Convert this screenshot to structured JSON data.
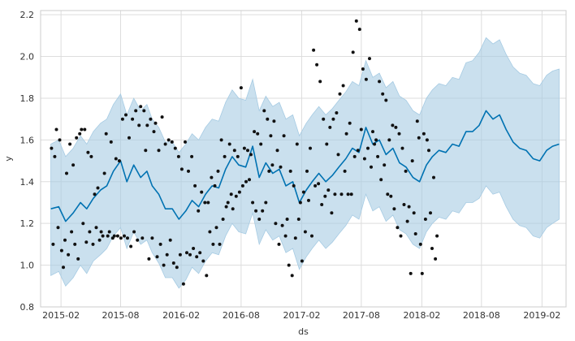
{
  "chart_data": {
    "type": "line",
    "title": "",
    "xlabel": "ds",
    "ylabel": "y",
    "xlim": [
      "2014-12-01",
      "2019-04-15"
    ],
    "ylim": [
      0.8,
      2.22
    ],
    "grid": true,
    "x_ticks": [
      {
        "date": "2015-02-01",
        "label": "2015-02"
      },
      {
        "date": "2015-08-01",
        "label": "2015-08"
      },
      {
        "date": "2016-02-01",
        "label": "2016-02"
      },
      {
        "date": "2016-08-01",
        "label": "2016-08"
      },
      {
        "date": "2017-02-01",
        "label": "2017-02"
      },
      {
        "date": "2017-08-01",
        "label": "2017-08"
      },
      {
        "date": "2018-02-01",
        "label": "2018-02"
      },
      {
        "date": "2018-08-01",
        "label": "2018-08"
      },
      {
        "date": "2019-02-01",
        "label": "2019-02"
      }
    ],
    "y_ticks": [
      0.8,
      1.0,
      1.2,
      1.4,
      1.6,
      1.8,
      2.0,
      2.2
    ],
    "colors": {
      "forecast": "#0072b2",
      "interval": "#a6cbe3",
      "observed": "#111111"
    },
    "forecast": {
      "x": [
        "2015-01-01",
        "2015-01-25",
        "2015-02-15",
        "2015-03-10",
        "2015-04-01",
        "2015-04-20",
        "2015-05-10",
        "2015-06-01",
        "2015-06-20",
        "2015-07-10",
        "2015-08-01",
        "2015-08-20",
        "2015-09-10",
        "2015-10-01",
        "2015-10-20",
        "2015-11-05",
        "2015-11-25",
        "2015-12-15",
        "2016-01-05",
        "2016-01-25",
        "2016-02-15",
        "2016-03-05",
        "2016-03-25",
        "2016-04-15",
        "2016-05-05",
        "2016-05-25",
        "2016-06-15",
        "2016-07-05",
        "2016-07-25",
        "2016-08-15",
        "2016-09-05",
        "2016-09-25",
        "2016-10-15",
        "2016-11-05",
        "2016-11-25",
        "2016-12-15",
        "2017-01-05",
        "2017-01-25",
        "2017-02-15",
        "2017-03-05",
        "2017-03-25",
        "2017-04-15",
        "2017-05-05",
        "2017-05-25",
        "2017-06-15",
        "2017-07-05",
        "2017-07-25",
        "2017-08-15",
        "2017-09-05",
        "2017-09-25",
        "2017-10-15",
        "2017-11-05",
        "2017-11-25",
        "2017-12-15",
        "2018-01-05",
        "2018-01-25",
        "2018-02-15",
        "2018-03-05",
        "2018-03-25",
        "2018-04-15",
        "2018-05-05",
        "2018-05-25",
        "2018-06-15",
        "2018-07-05",
        "2018-07-25",
        "2018-08-15",
        "2018-09-05",
        "2018-09-25",
        "2018-10-15",
        "2018-11-05",
        "2018-11-25",
        "2018-12-15",
        "2019-01-05",
        "2019-01-25",
        "2019-02-15",
        "2019-03-05",
        "2019-03-25"
      ],
      "y": [
        1.27,
        1.28,
        1.21,
        1.25,
        1.3,
        1.27,
        1.32,
        1.36,
        1.38,
        1.45,
        1.5,
        1.4,
        1.48,
        1.42,
        1.45,
        1.38,
        1.34,
        1.27,
        1.27,
        1.22,
        1.26,
        1.31,
        1.28,
        1.34,
        1.38,
        1.37,
        1.46,
        1.52,
        1.48,
        1.47,
        1.57,
        1.42,
        1.49,
        1.44,
        1.46,
        1.38,
        1.4,
        1.3,
        1.36,
        1.4,
        1.44,
        1.4,
        1.43,
        1.47,
        1.51,
        1.56,
        1.54,
        1.66,
        1.58,
        1.6,
        1.53,
        1.56,
        1.49,
        1.47,
        1.42,
        1.4,
        1.48,
        1.52,
        1.55,
        1.54,
        1.58,
        1.57,
        1.64,
        1.64,
        1.67,
        1.74,
        1.7,
        1.72,
        1.65,
        1.59,
        1.56,
        1.55,
        1.51,
        1.5,
        1.55,
        1.57,
        1.58
      ]
    },
    "interval_lower": [
      0.95,
      0.97,
      0.9,
      0.94,
      1.0,
      0.96,
      1.02,
      1.05,
      1.08,
      1.14,
      1.18,
      1.08,
      1.16,
      1.1,
      1.12,
      1.06,
      1.01,
      0.94,
      0.94,
      0.89,
      0.93,
      0.99,
      0.96,
      1.02,
      1.06,
      1.05,
      1.14,
      1.2,
      1.16,
      1.15,
      1.25,
      1.1,
      1.17,
      1.12,
      1.14,
      1.06,
      1.08,
      0.98,
      1.04,
      1.08,
      1.12,
      1.08,
      1.11,
      1.15,
      1.19,
      1.24,
      1.22,
      1.34,
      1.26,
      1.28,
      1.21,
      1.24,
      1.17,
      1.15,
      1.1,
      1.08,
      1.16,
      1.2,
      1.23,
      1.22,
      1.26,
      1.25,
      1.3,
      1.3,
      1.32,
      1.38,
      1.34,
      1.35,
      1.28,
      1.22,
      1.19,
      1.18,
      1.14,
      1.13,
      1.18,
      1.2,
      1.22
    ],
    "interval_upper": [
      1.58,
      1.6,
      1.52,
      1.56,
      1.62,
      1.58,
      1.64,
      1.68,
      1.7,
      1.77,
      1.82,
      1.72,
      1.8,
      1.74,
      1.77,
      1.7,
      1.66,
      1.59,
      1.59,
      1.54,
      1.58,
      1.63,
      1.6,
      1.66,
      1.7,
      1.69,
      1.78,
      1.84,
      1.8,
      1.79,
      1.89,
      1.74,
      1.81,
      1.76,
      1.78,
      1.7,
      1.72,
      1.62,
      1.68,
      1.72,
      1.76,
      1.72,
      1.75,
      1.79,
      1.83,
      1.88,
      1.86,
      1.98,
      1.9,
      1.92,
      1.85,
      1.88,
      1.81,
      1.79,
      1.74,
      1.72,
      1.8,
      1.84,
      1.87,
      1.86,
      1.9,
      1.89,
      1.97,
      1.98,
      2.02,
      2.09,
      2.06,
      2.08,
      2.01,
      1.95,
      1.92,
      1.91,
      1.87,
      1.86,
      1.91,
      1.93,
      1.94
    ],
    "observed": {
      "x": [
        "2015-01-03",
        "2015-01-08",
        "2015-01-13",
        "2015-01-18",
        "2015-01-23",
        "2015-01-28",
        "2015-02-03",
        "2015-02-08",
        "2015-02-13",
        "2015-02-18",
        "2015-02-23",
        "2015-02-28",
        "2015-03-05",
        "2015-03-10",
        "2015-03-15",
        "2015-03-20",
        "2015-03-25",
        "2015-03-30",
        "2015-04-04",
        "2015-04-09",
        "2015-04-14",
        "2015-04-19",
        "2015-04-24",
        "2015-04-29",
        "2015-05-04",
        "2015-05-09",
        "2015-05-14",
        "2015-05-19",
        "2015-05-24",
        "2015-05-29",
        "2015-06-03",
        "2015-06-08",
        "2015-06-13",
        "2015-06-18",
        "2015-06-23",
        "2015-06-28",
        "2015-07-03",
        "2015-07-08",
        "2015-07-13",
        "2015-07-18",
        "2015-07-23",
        "2015-07-28",
        "2015-08-02",
        "2015-08-07",
        "2015-08-12",
        "2015-08-17",
        "2015-08-22",
        "2015-08-27",
        "2015-09-01",
        "2015-09-06",
        "2015-09-11",
        "2015-09-16",
        "2015-09-21",
        "2015-09-26",
        "2015-10-01",
        "2015-10-06",
        "2015-10-11",
        "2015-10-16",
        "2015-10-21",
        "2015-10-26",
        "2015-10-31",
        "2015-11-05",
        "2015-11-10",
        "2015-11-15",
        "2015-11-20",
        "2015-11-25",
        "2015-11-30",
        "2015-12-05",
        "2015-12-10",
        "2015-12-15",
        "2015-12-20",
        "2015-12-25",
        "2015-12-30",
        "2016-01-04",
        "2016-01-09",
        "2016-01-14",
        "2016-01-19",
        "2016-01-24",
        "2016-01-29",
        "2016-02-03",
        "2016-02-08",
        "2016-02-13",
        "2016-02-18",
        "2016-02-23",
        "2016-02-28",
        "2016-03-04",
        "2016-03-09",
        "2016-03-14",
        "2016-03-19",
        "2016-03-24",
        "2016-03-29",
        "2016-04-03",
        "2016-04-08",
        "2016-04-13",
        "2016-04-18",
        "2016-04-23",
        "2016-04-28",
        "2016-05-03",
        "2016-05-08",
        "2016-05-13",
        "2016-05-18",
        "2016-05-23",
        "2016-05-28",
        "2016-06-02",
        "2016-06-07",
        "2016-06-12",
        "2016-06-17",
        "2016-06-22",
        "2016-06-27",
        "2016-07-02",
        "2016-07-07",
        "2016-07-12",
        "2016-07-17",
        "2016-07-22",
        "2016-07-27",
        "2016-08-01",
        "2016-08-06",
        "2016-08-11",
        "2016-08-16",
        "2016-08-21",
        "2016-08-26",
        "2016-08-31",
        "2016-09-05",
        "2016-09-10",
        "2016-09-15",
        "2016-09-20",
        "2016-09-25",
        "2016-09-30",
        "2016-10-05",
        "2016-10-10",
        "2016-10-15",
        "2016-10-20",
        "2016-10-25",
        "2016-10-30",
        "2016-11-04",
        "2016-11-09",
        "2016-11-14",
        "2016-11-19",
        "2016-11-24",
        "2016-11-29",
        "2016-12-04",
        "2016-12-09",
        "2016-12-14",
        "2016-12-19",
        "2016-12-24",
        "2016-12-29",
        "2017-01-03",
        "2017-01-08",
        "2017-01-13",
        "2017-01-18",
        "2017-01-23",
        "2017-01-28",
        "2017-02-02",
        "2017-02-07",
        "2017-02-12",
        "2017-02-17",
        "2017-02-22",
        "2017-02-27",
        "2017-03-04",
        "2017-03-09",
        "2017-03-14",
        "2017-03-19",
        "2017-03-24",
        "2017-03-29",
        "2017-04-03",
        "2017-04-08",
        "2017-04-13",
        "2017-04-18",
        "2017-04-23",
        "2017-04-28",
        "2017-05-03",
        "2017-05-08",
        "2017-05-13",
        "2017-05-18",
        "2017-05-23",
        "2017-05-28",
        "2017-06-02",
        "2017-06-07",
        "2017-06-12",
        "2017-06-17",
        "2017-06-22",
        "2017-06-27",
        "2017-07-02",
        "2017-07-07",
        "2017-07-12",
        "2017-07-17",
        "2017-07-22",
        "2017-07-27",
        "2017-08-01",
        "2017-08-06",
        "2017-08-11",
        "2017-08-16",
        "2017-08-21",
        "2017-08-26",
        "2017-08-31",
        "2017-09-05",
        "2017-09-10",
        "2017-09-15",
        "2017-09-20",
        "2017-09-25",
        "2017-09-30",
        "2017-10-05",
        "2017-10-10",
        "2017-10-15",
        "2017-10-20",
        "2017-10-25",
        "2017-10-30",
        "2017-11-04",
        "2017-11-09",
        "2017-11-14",
        "2017-11-19",
        "2017-11-24",
        "2017-11-29",
        "2017-12-04",
        "2017-12-09",
        "2017-12-14",
        "2017-12-19",
        "2017-12-24",
        "2017-12-29",
        "2018-01-03",
        "2018-01-08",
        "2018-01-13",
        "2018-01-18",
        "2018-01-23",
        "2018-01-28",
        "2018-02-02",
        "2018-02-07",
        "2018-02-12",
        "2018-02-17",
        "2018-02-22",
        "2018-02-27",
        "2018-03-04",
        "2018-03-09",
        "2018-03-14",
        "2018-03-19"
      ],
      "y": [
        1.56,
        1.1,
        1.52,
        1.65,
        1.18,
        1.6,
        1.07,
        0.99,
        1.12,
        1.44,
        1.05,
        1.58,
        1.16,
        1.48,
        1.1,
        1.61,
        1.03,
        1.63,
        1.65,
        1.2,
        1.65,
        1.11,
        1.54,
        1.16,
        1.52,
        1.1,
        1.34,
        1.18,
        1.37,
        1.12,
        1.16,
        1.14,
        1.44,
        1.63,
        1.14,
        1.16,
        1.59,
        1.13,
        1.14,
        1.51,
        1.14,
        1.5,
        1.13,
        1.7,
        1.14,
        1.72,
        1.13,
        1.61,
        1.09,
        1.7,
        1.16,
        1.74,
        1.12,
        1.67,
        1.76,
        1.13,
        1.74,
        1.55,
        1.67,
        1.03,
        1.7,
        1.13,
        1.64,
        1.68,
        1.04,
        1.55,
        1.1,
        1.71,
        1.0,
        1.58,
        1.05,
        1.6,
        1.12,
        1.59,
        1.01,
        1.56,
        0.99,
        1.52,
        1.05,
        1.46,
        0.91,
        1.59,
        1.06,
        1.45,
        1.05,
        1.52,
        1.08,
        1.38,
        1.04,
        1.26,
        1.06,
        1.35,
        1.02,
        1.3,
        0.95,
        1.3,
        1.16,
        1.42,
        1.1,
        1.38,
        1.18,
        1.45,
        1.1,
        1.6,
        1.22,
        1.52,
        1.28,
        1.3,
        1.58,
        1.34,
        1.27,
        1.55,
        1.33,
        1.52,
        1.35,
        1.85,
        1.38,
        1.56,
        1.4,
        1.55,
        1.41,
        1.53,
        1.3,
        1.64,
        1.26,
        1.63,
        1.22,
        1.58,
        1.26,
        1.74,
        1.3,
        1.7,
        1.45,
        1.62,
        1.48,
        1.69,
        1.2,
        1.55,
        1.1,
        1.47,
        1.19,
        1.62,
        1.14,
        1.22,
        1.0,
        1.45,
        0.95,
        1.38,
        1.13,
        1.58,
        1.22,
        1.3,
        1.02,
        1.35,
        1.16,
        1.45,
        1.31,
        1.56,
        1.14,
        2.03,
        1.38,
        1.96,
        1.39,
        1.88,
        1.29,
        1.7,
        1.33,
        1.58,
        1.36,
        1.66,
        1.25,
        1.7,
        1.34,
        1.73,
        1.53,
        1.82,
        1.34,
        1.86,
        1.45,
        1.63,
        1.34,
        1.68,
        1.34,
        2.02,
        1.52,
        2.17,
        1.55,
        2.13,
        1.65,
        1.94,
        1.51,
        1.89,
        1.56,
        1.99,
        1.47,
        1.64,
        1.58,
        1.6,
        1.52,
        1.88,
        1.41,
        1.82,
        1.48,
        1.79,
        1.34,
        1.6,
        1.33,
        1.67,
        1.27,
        1.66,
        1.18,
        1.63,
        1.14,
        1.56,
        1.29,
        1.45,
        1.21,
        1.28,
        0.96,
        1.5,
        1.25,
        1.15,
        1.69,
        1.61,
        1.1,
        0.96,
        1.63,
        1.22,
        1.6,
        1.55,
        1.25,
        1.08,
        1.42,
        1.03,
        1.14
      ]
    }
  }
}
